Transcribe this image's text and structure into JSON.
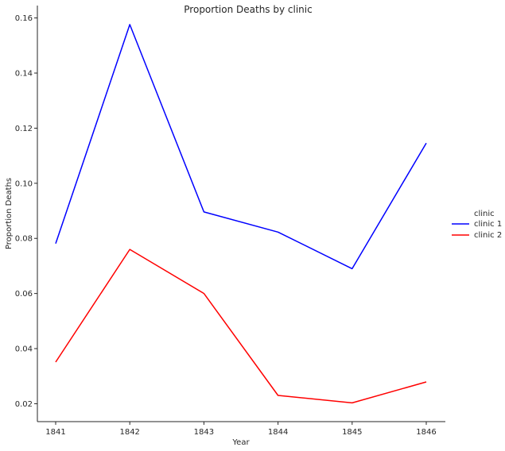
{
  "chart_data": {
    "type": "line",
    "title": "Proportion Deaths by clinic",
    "xlabel": "Year",
    "ylabel": "Proportion Deaths",
    "x": [
      1841,
      1842,
      1843,
      1844,
      1845,
      1846
    ],
    "xticks": [
      "1841",
      "1842",
      "1843",
      "1844",
      "1845",
      "1846"
    ],
    "ylim": [
      0.0135,
      0.1645
    ],
    "yticks": [
      0.02,
      0.04,
      0.06,
      0.08,
      0.1,
      0.12,
      0.14,
      0.16
    ],
    "ytick_labels": [
      "0.02",
      "0.04",
      "0.06",
      "0.08",
      "0.10",
      "0.12",
      "0.14",
      "0.16"
    ],
    "grid": false,
    "legend": {
      "title": "clinic",
      "placement": "right"
    },
    "series": [
      {
        "name": "clinic 1",
        "color": "#0000ff",
        "values": [
          0.0781,
          0.1576,
          0.0896,
          0.0823,
          0.069,
          0.1146
        ]
      },
      {
        "name": "clinic 2",
        "color": "#ff0000",
        "values": [
          0.0351,
          0.076,
          0.06,
          0.023,
          0.0203,
          0.0279
        ]
      }
    ]
  }
}
